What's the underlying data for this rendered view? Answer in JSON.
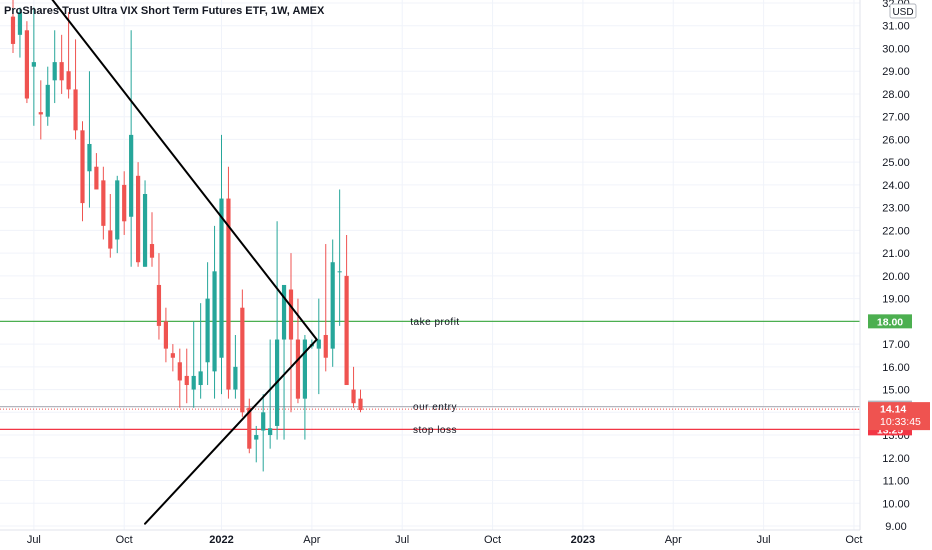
{
  "title": "ProShares Trust Ultra VIX Short Term Futures ETF, 1W, AMEX",
  "currency": "USD",
  "colors": {
    "up": "#26a69a",
    "down": "#ef5350",
    "take_profit": "#4caf50",
    "stop_loss": "#f23645",
    "entry": "#b2b5be",
    "drawing": "#000000"
  },
  "chart_data": {
    "type": "candlestick",
    "title": "ProShares Trust Ultra VIX Short Term Futures ETF, 1W, AMEX",
    "ylim": [
      8.7,
      32.0
    ],
    "y_ticks": [
      9,
      10,
      11,
      12,
      13,
      14,
      15,
      16,
      17,
      18,
      19,
      20,
      21,
      22,
      23,
      24,
      25,
      26,
      27,
      28,
      29,
      30,
      31,
      32
    ],
    "y_tick_labels": [
      "9.00",
      "10.00",
      "11.00",
      "12.00",
      "13.00",
      "14.00",
      "15.00",
      "16.00",
      "17.00",
      "18.00",
      "19.00",
      "20.00",
      "21.00",
      "22.00",
      "23.00",
      "24.00",
      "25.00",
      "26.00",
      "27.00",
      "28.00",
      "29.00",
      "30.00",
      "31.00",
      "32.00"
    ],
    "x_ticks": [
      {
        "label": "Jul",
        "week": 3,
        "bold": false
      },
      {
        "label": "Oct",
        "week": 16,
        "bold": false
      },
      {
        "label": "2022",
        "week": 30,
        "bold": true
      },
      {
        "label": "Apr",
        "week": 43,
        "bold": false
      },
      {
        "label": "Jul",
        "week": 56,
        "bold": false
      },
      {
        "label": "Oct",
        "week": 69,
        "bold": false
      },
      {
        "label": "2023",
        "week": 82,
        "bold": true
      },
      {
        "label": "Apr",
        "week": 95,
        "bold": false
      },
      {
        "label": "Jul",
        "week": 108,
        "bold": false
      },
      {
        "label": "Oct",
        "week": 121,
        "bold": false
      }
    ],
    "candles": [
      {
        "o": 31.4,
        "h": 32.6,
        "l": 29.8,
        "c": 30.2
      },
      {
        "o": 30.6,
        "h": 31.8,
        "l": 29.6,
        "c": 31.6
      },
      {
        "o": 30.8,
        "h": 31.2,
        "l": 27.6,
        "c": 27.8
      },
      {
        "o": 29.2,
        "h": 31.8,
        "l": 26.6,
        "c": 29.4
      },
      {
        "o": 27.2,
        "h": 28.6,
        "l": 26.0,
        "c": 27.1
      },
      {
        "o": 27.0,
        "h": 29.2,
        "l": 26.6,
        "c": 28.4
      },
      {
        "o": 28.6,
        "h": 30.8,
        "l": 27.6,
        "c": 29.4
      },
      {
        "o": 29.4,
        "h": 30.6,
        "l": 28.0,
        "c": 28.6
      },
      {
        "o": 29.0,
        "h": 31.6,
        "l": 27.8,
        "c": 28.2
      },
      {
        "o": 28.2,
        "h": 30.4,
        "l": 26.0,
        "c": 26.4
      },
      {
        "o": 26.4,
        "h": 26.8,
        "l": 22.4,
        "c": 23.2
      },
      {
        "o": 24.6,
        "h": 29.0,
        "l": 23.0,
        "c": 25.8
      },
      {
        "o": 24.8,
        "h": 25.4,
        "l": 23.8,
        "c": 23.8
      },
      {
        "o": 24.2,
        "h": 24.8,
        "l": 21.6,
        "c": 22.2
      },
      {
        "o": 22.0,
        "h": 23.6,
        "l": 20.8,
        "c": 21.2
      },
      {
        "o": 21.6,
        "h": 24.4,
        "l": 21.0,
        "c": 24.2
      },
      {
        "o": 24.0,
        "h": 24.6,
        "l": 21.8,
        "c": 22.4
      },
      {
        "o": 22.6,
        "h": 30.8,
        "l": 20.4,
        "c": 26.2
      },
      {
        "o": 24.4,
        "h": 25.0,
        "l": 20.4,
        "c": 20.6
      },
      {
        "o": 20.4,
        "h": 24.2,
        "l": 20.4,
        "c": 23.6
      },
      {
        "o": 21.4,
        "h": 22.8,
        "l": 20.4,
        "c": 20.8
      },
      {
        "o": 19.6,
        "h": 21.0,
        "l": 17.2,
        "c": 17.8
      },
      {
        "o": 18.0,
        "h": 18.6,
        "l": 16.2,
        "c": 16.8
      },
      {
        "o": 16.6,
        "h": 17.0,
        "l": 15.8,
        "c": 16.4
      },
      {
        "o": 16.2,
        "h": 16.8,
        "l": 14.2,
        "c": 15.4
      },
      {
        "o": 15.6,
        "h": 16.8,
        "l": 14.4,
        "c": 15.2
      },
      {
        "o": 15.0,
        "h": 18.0,
        "l": 14.2,
        "c": 15.6
      },
      {
        "o": 15.2,
        "h": 18.8,
        "l": 14.6,
        "c": 15.8
      },
      {
        "o": 16.2,
        "h": 20.6,
        "l": 15.2,
        "c": 19.0
      },
      {
        "o": 15.8,
        "h": 22.2,
        "l": 14.6,
        "c": 20.2
      },
      {
        "o": 16.4,
        "h": 26.2,
        "l": 14.8,
        "c": 23.4
      },
      {
        "o": 23.4,
        "h": 24.8,
        "l": 14.6,
        "c": 15.0
      },
      {
        "o": 15.0,
        "h": 17.4,
        "l": 14.6,
        "c": 16.0
      },
      {
        "o": 18.6,
        "h": 19.4,
        "l": 13.8,
        "c": 14.0
      },
      {
        "o": 14.2,
        "h": 14.6,
        "l": 12.2,
        "c": 12.4
      },
      {
        "o": 12.8,
        "h": 13.4,
        "l": 11.8,
        "c": 13.0
      },
      {
        "o": 13.2,
        "h": 14.8,
        "l": 11.4,
        "c": 14.0
      },
      {
        "o": 13.0,
        "h": 17.2,
        "l": 12.4,
        "c": 13.3
      },
      {
        "o": 13.4,
        "h": 22.4,
        "l": 12.8,
        "c": 17.2
      },
      {
        "o": 17.2,
        "h": 19.6,
        "l": 12.8,
        "c": 19.6
      },
      {
        "o": 19.4,
        "h": 21.0,
        "l": 14.0,
        "c": 17.2
      },
      {
        "o": 17.2,
        "h": 19.0,
        "l": 14.4,
        "c": 14.6
      },
      {
        "o": 14.6,
        "h": 17.4,
        "l": 12.8,
        "c": 17.2
      },
      {
        "o": 16.9,
        "h": 17.2,
        "l": 16.8,
        "c": 17.0
      },
      {
        "o": 16.8,
        "h": 19.0,
        "l": 14.8,
        "c": 17.2
      },
      {
        "o": 17.4,
        "h": 21.4,
        "l": 15.8,
        "c": 16.4
      },
      {
        "o": 16.8,
        "h": 21.6,
        "l": 16.0,
        "c": 20.6
      },
      {
        "o": 20.2,
        "h": 23.8,
        "l": 17.8,
        "c": 20.2
      },
      {
        "o": 20.0,
        "h": 21.8,
        "l": 15.2,
        "c": 15.2
      },
      {
        "o": 15.0,
        "h": 16.0,
        "l": 14.2,
        "c": 14.4
      },
      {
        "o": 14.6,
        "h": 15.0,
        "l": 14.0,
        "c": 14.1
      }
    ],
    "horizontal_lines": [
      {
        "name": "take profit",
        "value": 18.0,
        "label": "take profit",
        "badge": "18.00",
        "color": "#4caf50"
      },
      {
        "name": "our entry",
        "value": 14.25,
        "label": "our entry",
        "badge": "14.25",
        "color": "#b2b5be"
      },
      {
        "name": "stop loss",
        "value": 13.25,
        "label": "stop loss",
        "badge": "13.25",
        "color": "#f23645"
      }
    ],
    "current_price": {
      "value": 14.14,
      "label": "14.14",
      "countdown": "10:33:45"
    },
    "trend_lines": [
      {
        "from": {
          "week": 4,
          "price": 32.8
        },
        "to": {
          "week": 43.7,
          "price": 17.2
        }
      },
      {
        "from": {
          "week": 43.7,
          "price": 17.2
        },
        "to": {
          "week": 19.0,
          "price": 9.1
        }
      }
    ]
  }
}
